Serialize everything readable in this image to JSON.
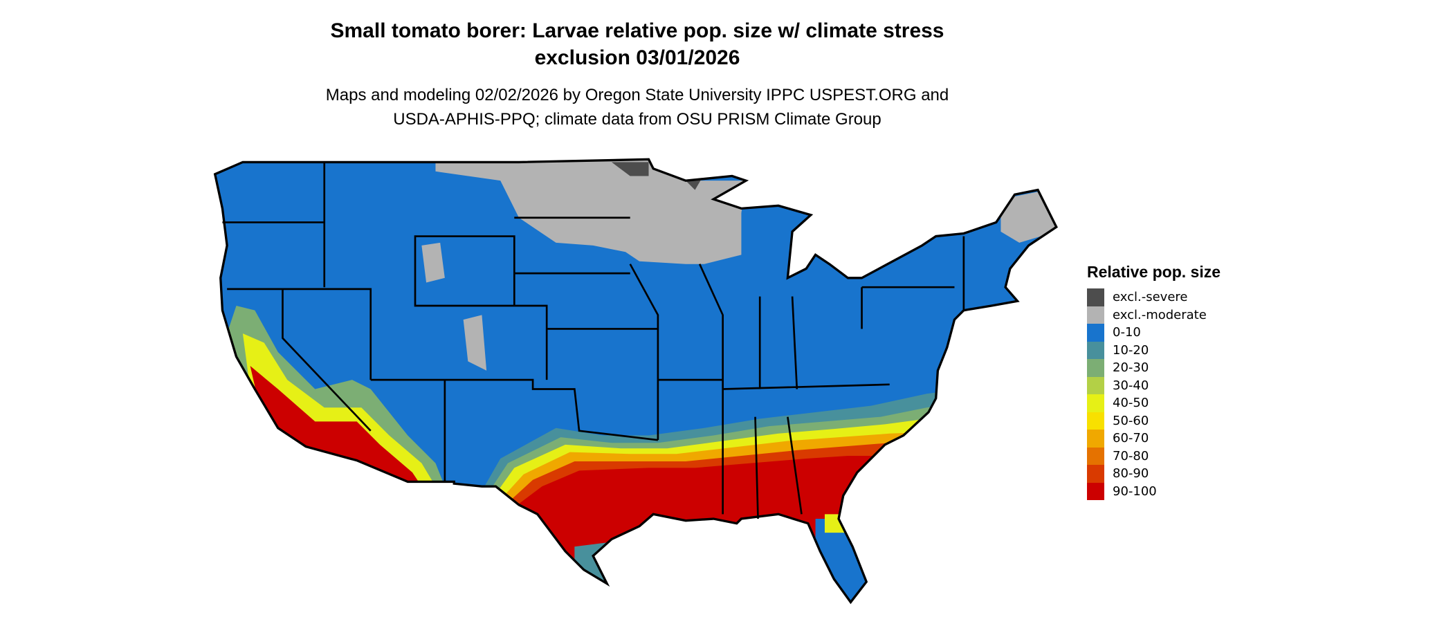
{
  "title": {
    "line1": "Small tomato borer: Larvae relative pop. size w/ climate stress",
    "line2": "exclusion 03/01/2026"
  },
  "subtitle": {
    "line1": "Maps and modeling 02/02/2026 by Oregon State University IPPC USPEST.ORG and",
    "line2": "USDA-APHIS-PPQ; climate data from OSU PRISM Climate Group"
  },
  "legend": {
    "title": "Relative pop. size",
    "items": [
      {
        "label": "excl.-severe",
        "color": "#4d4d4d"
      },
      {
        "label": "excl.-moderate",
        "color": "#b3b3b3"
      },
      {
        "label": "0-10",
        "color": "#1874cd"
      },
      {
        "label": "10-20",
        "color": "#48909c"
      },
      {
        "label": "20-30",
        "color": "#7cae74"
      },
      {
        "label": "30-40",
        "color": "#b3d046"
      },
      {
        "label": "40-50",
        "color": "#e6f016"
      },
      {
        "label": "50-60",
        "color": "#f8e000"
      },
      {
        "label": "60-70",
        "color": "#f0a800"
      },
      {
        "label": "70-80",
        "color": "#e57200"
      },
      {
        "label": "80-90",
        "color": "#d93a00"
      },
      {
        "label": "90-100",
        "color": "#cc0000"
      }
    ]
  }
}
